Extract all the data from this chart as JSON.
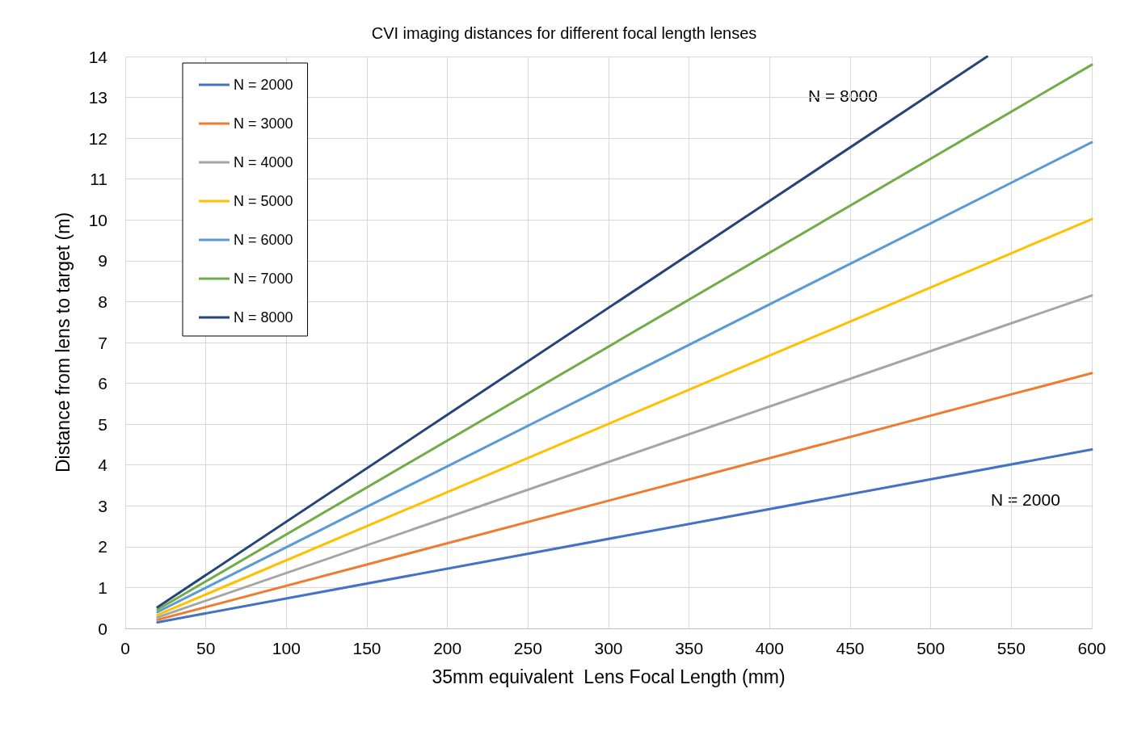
{
  "chart_data": {
    "type": "line",
    "title": "CVI imaging distances for different focal length lenses",
    "xlabel": "35mm equivalent  Lens Focal Length (mm)",
    "ylabel": "Distance from lens to target (m)",
    "x": [
      20,
      600
    ],
    "series": [
      {
        "name": "N = 2000",
        "color": "#4472c4",
        "values": [
          0.15,
          4.38
        ]
      },
      {
        "name": "N = 3000",
        "color": "#ed7d31",
        "values": [
          0.21,
          6.25
        ]
      },
      {
        "name": "N = 4000",
        "color": "#a5a5a5",
        "values": [
          0.27,
          8.15
        ]
      },
      {
        "name": "N = 5000",
        "color": "#ffc000",
        "values": [
          0.33,
          10.02
        ]
      },
      {
        "name": "N = 6000",
        "color": "#5b9bd5",
        "values": [
          0.4,
          11.9
        ]
      },
      {
        "name": "N = 7000",
        "color": "#70ad47",
        "values": [
          0.46,
          13.8
        ]
      },
      {
        "name": "N = 8000",
        "color": "#264478",
        "x": [
          20,
          535
        ],
        "values": [
          0.52,
          14
        ]
      }
    ],
    "xlim": [
      0,
      600
    ],
    "xticks": [
      0,
      50,
      100,
      150,
      200,
      250,
      300,
      350,
      400,
      450,
      500,
      550,
      600
    ],
    "ylim": [
      0,
      14
    ],
    "yticks": [
      0,
      1,
      2,
      3,
      4,
      5,
      6,
      7,
      8,
      9,
      10,
      11,
      12,
      13,
      14
    ],
    "annotations": [
      "N = 8000",
      "N = 2000"
    ],
    "grid": true,
    "legend": "top left",
    "marker": "none",
    "line_style": "solid"
  }
}
